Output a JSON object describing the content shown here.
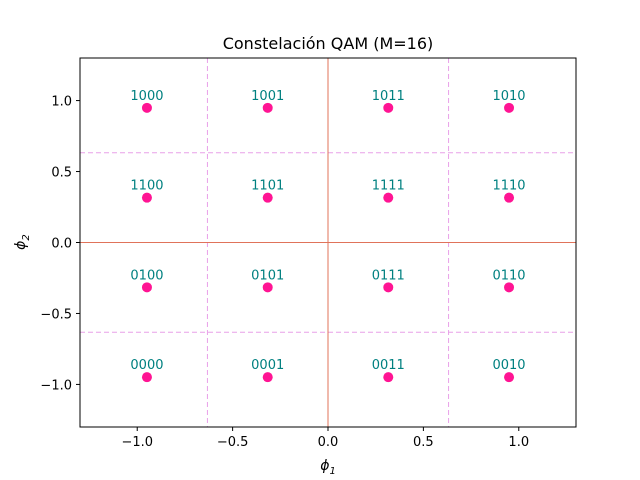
{
  "chart_data": {
    "type": "scatter",
    "title": "Constelación QAM (M=16)",
    "xlabel": {
      "base": "ϕ",
      "sub": "1"
    },
    "ylabel": {
      "base": "ϕ",
      "sub": "2"
    },
    "xlim": [
      -1.3,
      1.3
    ],
    "ylim": [
      -1.3,
      1.3
    ],
    "xticks": [
      -1.0,
      -0.5,
      0.0,
      0.5,
      1.0
    ],
    "yticks": [
      -1.0,
      -0.5,
      0.0,
      0.5,
      1.0
    ],
    "xtick_labels": [
      "−1.0",
      "−0.5",
      "0.0",
      "0.5",
      "1.0"
    ],
    "ytick_labels": [
      "−1.0",
      "−0.5",
      "0.0",
      "0.5",
      "1.0"
    ],
    "grid": false,
    "zero_lines": {
      "x": 0.0,
      "y": 0.0
    },
    "decision_boundaries": {
      "x": [
        -0.632,
        0.632
      ],
      "y": [
        -0.632,
        0.632
      ]
    },
    "points": [
      {
        "x": -0.949,
        "y": 0.949,
        "label": "1000"
      },
      {
        "x": -0.316,
        "y": 0.949,
        "label": "1001"
      },
      {
        "x": 0.316,
        "y": 0.949,
        "label": "1011"
      },
      {
        "x": 0.949,
        "y": 0.949,
        "label": "1010"
      },
      {
        "x": -0.949,
        "y": 0.316,
        "label": "1100"
      },
      {
        "x": -0.316,
        "y": 0.316,
        "label": "1101"
      },
      {
        "x": 0.316,
        "y": 0.316,
        "label": "1111"
      },
      {
        "x": 0.949,
        "y": 0.316,
        "label": "1110"
      },
      {
        "x": -0.949,
        "y": -0.316,
        "label": "0100"
      },
      {
        "x": -0.316,
        "y": -0.316,
        "label": "0101"
      },
      {
        "x": 0.316,
        "y": -0.316,
        "label": "0111"
      },
      {
        "x": 0.949,
        "y": -0.316,
        "label": "0110"
      },
      {
        "x": -0.949,
        "y": -0.949,
        "label": "0000"
      },
      {
        "x": -0.316,
        "y": -0.949,
        "label": "0001"
      },
      {
        "x": 0.316,
        "y": -0.949,
        "label": "0011"
      },
      {
        "x": 0.949,
        "y": -0.949,
        "label": "0010"
      }
    ],
    "colors": {
      "point": "#ff1493",
      "label": "#008080",
      "zero_line": "#e0735a",
      "boundary": "#e8a0e8",
      "axes": "#000000"
    }
  }
}
